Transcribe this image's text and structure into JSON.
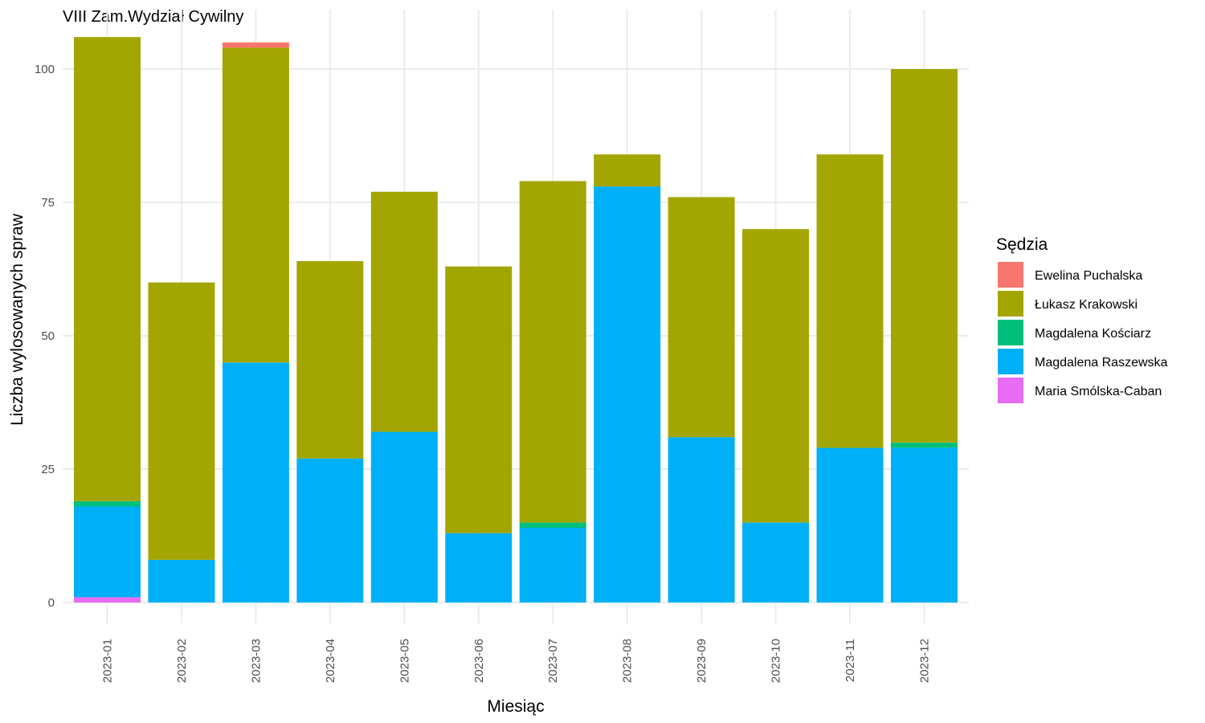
{
  "chart_data": {
    "type": "bar",
    "stacked": true,
    "title": "VIII Zam.Wydział Cywilny",
    "xlabel": "Miesiąc",
    "ylabel": "Liczba wylosowanych spraw",
    "ylim": [
      0,
      108
    ],
    "yticks": [
      0,
      25,
      50,
      75,
      100
    ],
    "grid": true,
    "legend_title": "Sędzia",
    "legend_position": "right",
    "categories": [
      "2023-01",
      "2023-02",
      "2023-03",
      "2023-04",
      "2023-05",
      "2023-06",
      "2023-07",
      "2023-08",
      "2023-09",
      "2023-10",
      "2023-11",
      "2023-12"
    ],
    "series": [
      {
        "name": "Ewelina Puchalska",
        "color": "#F8766D",
        "values": [
          0,
          0,
          1,
          0,
          0,
          0,
          0,
          0,
          0,
          0,
          0,
          0
        ]
      },
      {
        "name": "Łukasz Krakowski",
        "color": "#A3A500",
        "values": [
          87,
          52,
          59,
          37,
          45,
          50,
          64,
          6,
          45,
          55,
          55,
          70
        ]
      },
      {
        "name": "Magdalena Kościarz",
        "color": "#00BF7D",
        "values": [
          1,
          0,
          0,
          0,
          0,
          0,
          1,
          0,
          0,
          0,
          0,
          1
        ]
      },
      {
        "name": "Magdalena Raszewska",
        "color": "#00B0F6",
        "values": [
          17,
          8,
          45,
          27,
          32,
          13,
          14,
          78,
          31,
          15,
          29,
          29
        ]
      },
      {
        "name": "Maria Smólska-Caban",
        "color": "#E76BF3",
        "values": [
          1,
          0,
          0,
          0,
          0,
          0,
          0,
          0,
          0,
          0,
          0,
          0
        ]
      }
    ]
  }
}
